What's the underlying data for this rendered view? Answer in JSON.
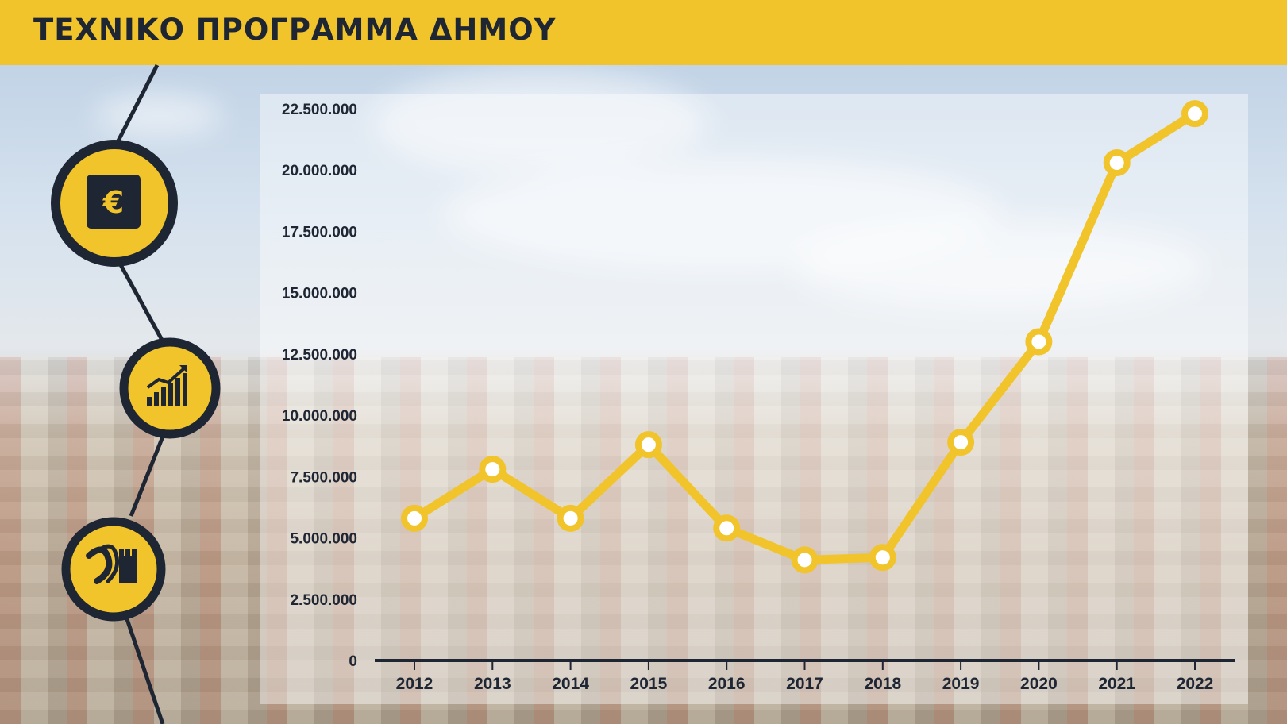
{
  "header": {
    "title": "ΤΕΧΝΙΚΟ ΠΡΟΓΡΑΜΜΑ ΔΗΜΟΥ"
  },
  "icons": [
    {
      "name": "euro-icon",
      "glyph": "€"
    },
    {
      "name": "growth-chart-icon"
    },
    {
      "name": "road-castle-icon"
    }
  ],
  "colors": {
    "accent": "#f2c42c",
    "dark": "#1e2533",
    "line": "#f2c42c",
    "marker_fill": "#ffffff"
  },
  "chart_data": {
    "type": "line",
    "x": [
      "2012",
      "2013",
      "2014",
      "2015",
      "2016",
      "2017",
      "2018",
      "2019",
      "2020",
      "2021",
      "2022"
    ],
    "series": [
      {
        "values": [
          5800000,
          7800000,
          5800000,
          8800000,
          5400000,
          4100000,
          4200000,
          8900000,
          13000000,
          20300000,
          22300000
        ]
      }
    ],
    "ylim": [
      0,
      22500000
    ],
    "yticks": [
      0,
      2500000,
      5000000,
      7500000,
      10000000,
      12500000,
      15000000,
      17500000,
      20000000,
      22500000
    ],
    "ytick_labels": [
      "0",
      "2.500.000",
      "5.000.000",
      "7.500.000",
      "10.000.000",
      "12.500.000",
      "15.000.000",
      "17.500.000",
      "20.000.000",
      "22.500.000"
    ],
    "grid": false,
    "title": "",
    "xlabel": "",
    "ylabel": ""
  }
}
